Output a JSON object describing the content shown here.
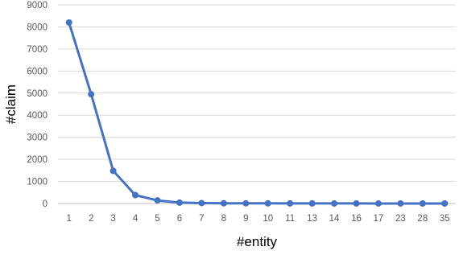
{
  "chart_data": {
    "type": "line",
    "title": "",
    "xlabel": "#entity",
    "ylabel": "#claim",
    "categories": [
      "1",
      "2",
      "3",
      "4",
      "5",
      "6",
      "7",
      "8",
      "9",
      "10",
      "11",
      "13",
      "14",
      "16",
      "17",
      "23",
      "28",
      "35"
    ],
    "series": [
      {
        "values": [
          8200,
          4950,
          1480,
          380,
          140,
          40,
          20,
          10,
          8,
          6,
          5,
          3,
          2,
          2,
          1,
          1,
          1,
          1
        ]
      }
    ],
    "ylim": [
      0,
      9000
    ],
    "yticks": [
      "0",
      "1000",
      "2000",
      "3000",
      "4000",
      "5000",
      "6000",
      "7000",
      "8000",
      "9000"
    ],
    "grid": "horizontal",
    "legend": "none",
    "colors": {
      "series": "#4472c4",
      "grid": "#d9d9d9",
      "axis": "#bfbfbf",
      "tick_text": "#595959"
    }
  }
}
